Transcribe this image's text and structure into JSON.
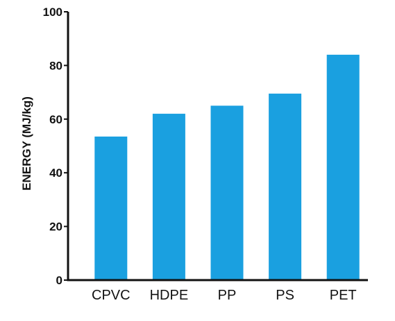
{
  "chart_data": {
    "type": "bar",
    "title": "",
    "xlabel": "",
    "ylabel": "ENERGY (MJ/kg)",
    "categories": [
      "CPVC",
      "HDPE",
      "PP",
      "PS",
      "PET"
    ],
    "values": [
      53.5,
      62,
      65,
      69.5,
      84
    ],
    "ylim": [
      0,
      100
    ],
    "yticks": [
      0,
      20,
      40,
      60,
      80,
      100
    ],
    "grid": false,
    "bar_color": "#1aa0e0",
    "axis_color": "#111111"
  }
}
